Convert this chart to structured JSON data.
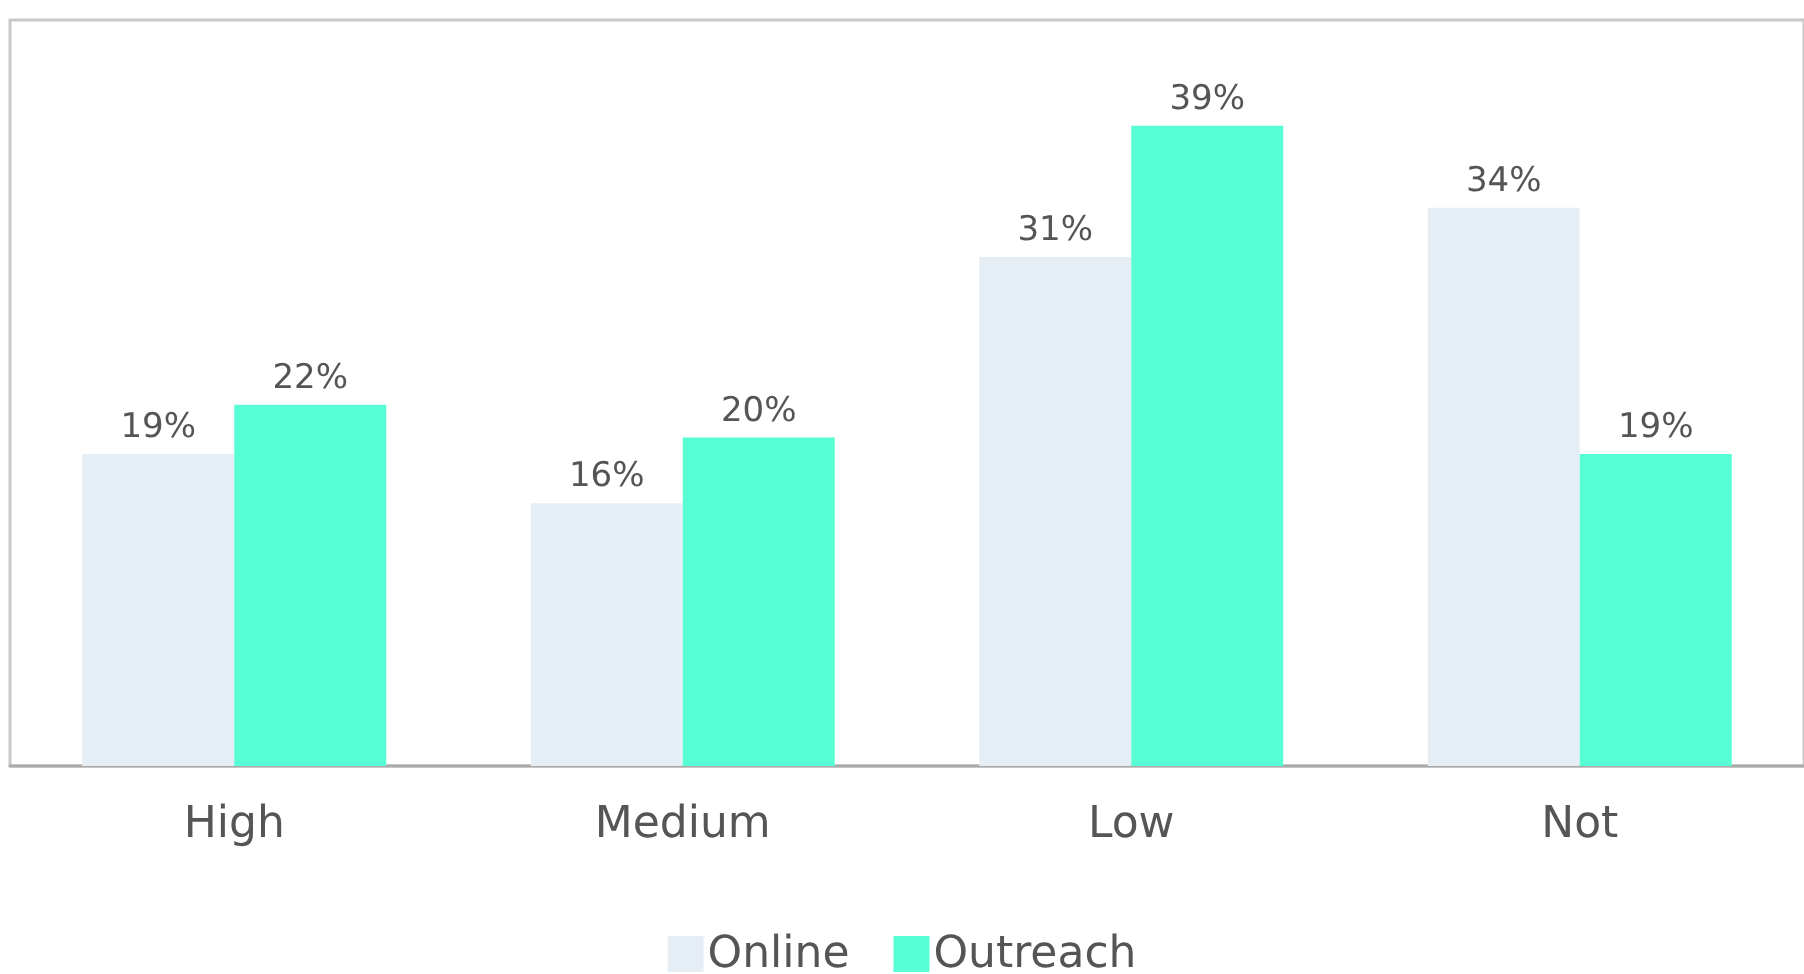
{
  "chart_data": {
    "type": "bar",
    "categories": [
      "High",
      "Medium",
      "Low",
      "Not"
    ],
    "series": [
      {
        "name": "Online",
        "color": "#e6eef5",
        "values": [
          19,
          16,
          31,
          34
        ],
        "value_labels": [
          "19%",
          "16%",
          "31%",
          "34%"
        ]
      },
      {
        "name": "Outreach",
        "color": "#58ffd4",
        "values": [
          22,
          20,
          39,
          19
        ],
        "value_labels": [
          "22%",
          "20%",
          "39%",
          "19%"
        ]
      }
    ],
    "legend": "bottom"
  }
}
